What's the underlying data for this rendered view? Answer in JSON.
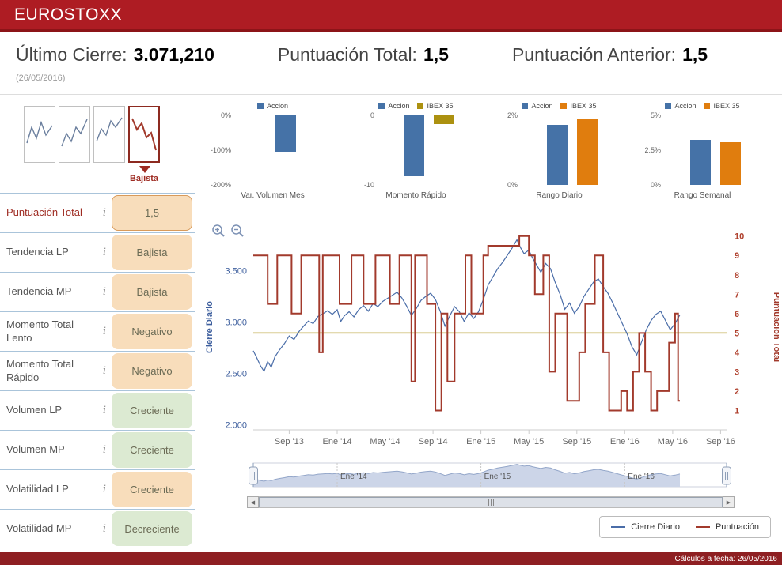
{
  "header": {
    "title": "EUROSTOXX"
  },
  "summary": {
    "ultimo_cierre_label": "Último Cierre:",
    "ultimo_cierre_value": "3.071,210",
    "puntuacion_total_label": "Puntuación Total:",
    "puntuacion_total_value": "1,5",
    "puntuacion_anterior_label": "Puntuación Anterior:",
    "puntuacion_anterior_value": "1,5",
    "date": "(26/05/2016)"
  },
  "trend_selector": {
    "selected_label": "Bajista"
  },
  "icons": {
    "info_glyph": "i",
    "scroll_left_glyph": "◀",
    "scroll_right_glyph": "▶"
  },
  "indicators": [
    {
      "label": "Puntuación Total",
      "value": "1,5",
      "state": "orange"
    },
    {
      "label": "Tendencia LP",
      "value": "Bajista",
      "state": "orange"
    },
    {
      "label": "Tendencia MP",
      "value": "Bajista",
      "state": "orange"
    },
    {
      "label": "Momento Total Lento",
      "value": "Negativo",
      "state": "orange"
    },
    {
      "label": "Momento Total Rápido",
      "value": "Negativo",
      "state": "orange"
    },
    {
      "label": "Volumen LP",
      "value": "Creciente",
      "state": "green"
    },
    {
      "label": "Volumen MP",
      "value": "Creciente",
      "state": "green"
    },
    {
      "label": "Volatilidad LP",
      "value": "Creciente",
      "state": "orange"
    },
    {
      "label": "Volatilidad MP",
      "value": "Decreciente",
      "state": "green"
    }
  ],
  "footer": {
    "text": "Cálculos a fecha: 26/05/2016"
  },
  "chart_data": {
    "mini_charts": [
      {
        "type": "bar",
        "title": "Var. Volumen Mes",
        "y_min": -200,
        "y_max": 0,
        "y_ticks": [
          {
            "label": "0%",
            "value": 0
          },
          {
            "label": "-100%",
            "value": -100
          },
          {
            "label": "-200%",
            "value": -200
          }
        ],
        "series": [
          {
            "name": "Accion",
            "color": "#4572a7",
            "value": -105
          }
        ]
      },
      {
        "type": "bar",
        "title": "Momento Rápido",
        "y_min": -10,
        "y_max": 0,
        "y_ticks": [
          {
            "label": "0",
            "value": 0
          },
          {
            "label": "-10",
            "value": -10
          }
        ],
        "series": [
          {
            "name": "Accion",
            "color": "#4572a7",
            "value": -8.7
          },
          {
            "name": "IBEX 35",
            "color": "#ac9110",
            "value": -1.2
          }
        ]
      },
      {
        "type": "bar",
        "title": "Rango Diario",
        "y_min": 0,
        "y_max": 2,
        "y_ticks": [
          {
            "label": "2%",
            "value": 2
          },
          {
            "label": "0%",
            "value": 0
          }
        ],
        "series": [
          {
            "name": "Accion",
            "color": "#4572a7",
            "value": 1.72
          },
          {
            "name": "IBEX 35",
            "color": "#e07d0e",
            "value": 1.9
          }
        ]
      },
      {
        "type": "bar",
        "title": "Rango Semanal",
        "y_min": 0,
        "y_max": 5,
        "y_ticks": [
          {
            "label": "5%",
            "value": 5
          },
          {
            "label": "2.5%",
            "value": 2.5
          },
          {
            "label": "0%",
            "value": 0
          }
        ],
        "series": [
          {
            "name": "Accion",
            "color": "#4572a7",
            "value": 3.25
          },
          {
            "name": "IBEX 35",
            "color": "#e07d0e",
            "value": 3.05
          }
        ]
      }
    ],
    "main_chart": {
      "type": "line",
      "y_left_title": "Cierre Diario",
      "y_right_title": "Puntuación Total",
      "x_range": [
        0,
        39.5
      ],
      "price_domain": [
        1950,
        3950
      ],
      "score_domain": [
        0,
        10.6
      ],
      "threshold": {
        "value": 5,
        "color": "#b59b2a"
      },
      "x_ticks": [
        {
          "x": 3,
          "label": "Sep '13"
        },
        {
          "x": 7,
          "label": "Ene '14"
        },
        {
          "x": 11,
          "label": "May '14"
        },
        {
          "x": 15,
          "label": "Sep '14"
        },
        {
          "x": 19,
          "label": "Ene '15"
        },
        {
          "x": 23,
          "label": "May '15"
        },
        {
          "x": 27,
          "label": "Sep '15"
        },
        {
          "x": 31,
          "label": "Ene '16"
        },
        {
          "x": 35,
          "label": "May '16"
        },
        {
          "x": 39,
          "label": "Sep '16"
        }
      ],
      "price_ticks": [
        {
          "value": 3500,
          "label": "3.500"
        },
        {
          "value": 3000,
          "label": "3.000"
        },
        {
          "value": 2500,
          "label": "2.500"
        },
        {
          "value": 2000,
          "label": "2.000"
        }
      ],
      "score_ticks": [
        1,
        2,
        3,
        4,
        5,
        6,
        7,
        8,
        9,
        10
      ],
      "series": [
        {
          "name": "Cierre Diario",
          "color": "#4a6da8",
          "type": "line",
          "points": [
            [
              0,
              2720
            ],
            [
              0.3,
              2650
            ],
            [
              0.6,
              2575
            ],
            [
              0.9,
              2520
            ],
            [
              1.2,
              2615
            ],
            [
              1.5,
              2560
            ],
            [
              1.8,
              2660
            ],
            [
              2.2,
              2730
            ],
            [
              2.6,
              2790
            ],
            [
              3,
              2865
            ],
            [
              3.4,
              2830
            ],
            [
              3.8,
              2905
            ],
            [
              4.2,
              2960
            ],
            [
              4.6,
              3010
            ],
            [
              5,
              2985
            ],
            [
              5.4,
              3055
            ],
            [
              5.8,
              3080
            ],
            [
              6.2,
              3110
            ],
            [
              6.6,
              3075
            ],
            [
              7,
              3120
            ],
            [
              7.3,
              3005
            ],
            [
              7.6,
              3060
            ],
            [
              8,
              3100
            ],
            [
              8.4,
              3050
            ],
            [
              8.8,
              3120
            ],
            [
              9.2,
              3160
            ],
            [
              9.6,
              3105
            ],
            [
              10,
              3180
            ],
            [
              10.4,
              3150
            ],
            [
              10.8,
              3200
            ],
            [
              11.2,
              3230
            ],
            [
              11.6,
              3260
            ],
            [
              12,
              3290
            ],
            [
              12.4,
              3235
            ],
            [
              12.8,
              3155
            ],
            [
              13.2,
              3065
            ],
            [
              13.6,
              3130
            ],
            [
              14,
              3210
            ],
            [
              14.4,
              3250
            ],
            [
              14.8,
              3280
            ],
            [
              15.2,
              3220
            ],
            [
              15.6,
              3105
            ],
            [
              16,
              2960
            ],
            [
              16.4,
              3060
            ],
            [
              16.8,
              3150
            ],
            [
              17.2,
              3100
            ],
            [
              17.6,
              3005
            ],
            [
              18,
              3090
            ],
            [
              18.4,
              3035
            ],
            [
              18.8,
              3100
            ],
            [
              19.2,
              3220
            ],
            [
              19.6,
              3360
            ],
            [
              20,
              3440
            ],
            [
              20.4,
              3520
            ],
            [
              20.8,
              3580
            ],
            [
              21.2,
              3650
            ],
            [
              21.6,
              3720
            ],
            [
              22,
              3800
            ],
            [
              22.3,
              3725
            ],
            [
              22.6,
              3665
            ],
            [
              23,
              3700
            ],
            [
              23.3,
              3625
            ],
            [
              23.6,
              3565
            ],
            [
              24,
              3485
            ],
            [
              24.4,
              3570
            ],
            [
              24.8,
              3520
            ],
            [
              25.2,
              3385
            ],
            [
              25.6,
              3270
            ],
            [
              26,
              3125
            ],
            [
              26.4,
              3185
            ],
            [
              26.8,
              3085
            ],
            [
              27.2,
              3150
            ],
            [
              27.6,
              3250
            ],
            [
              28,
              3320
            ],
            [
              28.4,
              3390
            ],
            [
              28.8,
              3420
            ],
            [
              29.2,
              3345
            ],
            [
              29.6,
              3280
            ],
            [
              30,
              3185
            ],
            [
              30.4,
              3085
            ],
            [
              30.8,
              2985
            ],
            [
              31.2,
              2885
            ],
            [
              31.6,
              2760
            ],
            [
              32,
              2680
            ],
            [
              32.4,
              2805
            ],
            [
              32.8,
              2925
            ],
            [
              33.2,
              3015
            ],
            [
              33.6,
              3075
            ],
            [
              34,
              3105
            ],
            [
              34.4,
              3015
            ],
            [
              34.8,
              2925
            ],
            [
              35.2,
              2985
            ],
            [
              35.6,
              3071
            ]
          ]
        },
        {
          "name": "Puntuación",
          "color": "#a23a2c",
          "type": "step",
          "points": [
            [
              0,
              9
            ],
            [
              1.2,
              6.5
            ],
            [
              2,
              9
            ],
            [
              3.2,
              6
            ],
            [
              4,
              9
            ],
            [
              5.5,
              4
            ],
            [
              5.8,
              9
            ],
            [
              7.2,
              6.5
            ],
            [
              8.2,
              9
            ],
            [
              9.2,
              6.5
            ],
            [
              10.2,
              9
            ],
            [
              11.4,
              6.5
            ],
            [
              12.2,
              9
            ],
            [
              13.2,
              2.5
            ],
            [
              13.5,
              9
            ],
            [
              14.5,
              6.5
            ],
            [
              15.2,
              1
            ],
            [
              15.7,
              6
            ],
            [
              16.2,
              2.5
            ],
            [
              16.8,
              6
            ],
            [
              17.7,
              9
            ],
            [
              18.2,
              6
            ],
            [
              19.2,
              9
            ],
            [
              19.6,
              9.5
            ],
            [
              22.2,
              10
            ],
            [
              23,
              9
            ],
            [
              23.5,
              7
            ],
            [
              24.2,
              9
            ],
            [
              24.7,
              3
            ],
            [
              25.2,
              6
            ],
            [
              26.2,
              1.5
            ],
            [
              27.2,
              4
            ],
            [
              27.7,
              6.5
            ],
            [
              28.5,
              9
            ],
            [
              29.2,
              4
            ],
            [
              29.7,
              1
            ],
            [
              30.7,
              2
            ],
            [
              31.2,
              1
            ],
            [
              31.7,
              3
            ],
            [
              32.2,
              5
            ],
            [
              32.7,
              3
            ],
            [
              33.2,
              1
            ],
            [
              33.7,
              2
            ],
            [
              34.7,
              4.5
            ],
            [
              35.2,
              6
            ],
            [
              35.45,
              1.5
            ],
            [
              35.6,
              1.5
            ]
          ]
        }
      ]
    },
    "navigator": {
      "labels": [
        {
          "x": 7,
          "label": "Ene '14"
        },
        {
          "x": 19,
          "label": "Ene '15"
        },
        {
          "x": 31,
          "label": "Ene '16"
        }
      ],
      "area_color": "#ccd5e8",
      "line_color": "#93a6c9"
    },
    "legend": [
      {
        "label": "Cierre Diario",
        "color": "#4a6da8"
      },
      {
        "label": "Puntuación",
        "color": "#a23a2c"
      }
    ]
  }
}
